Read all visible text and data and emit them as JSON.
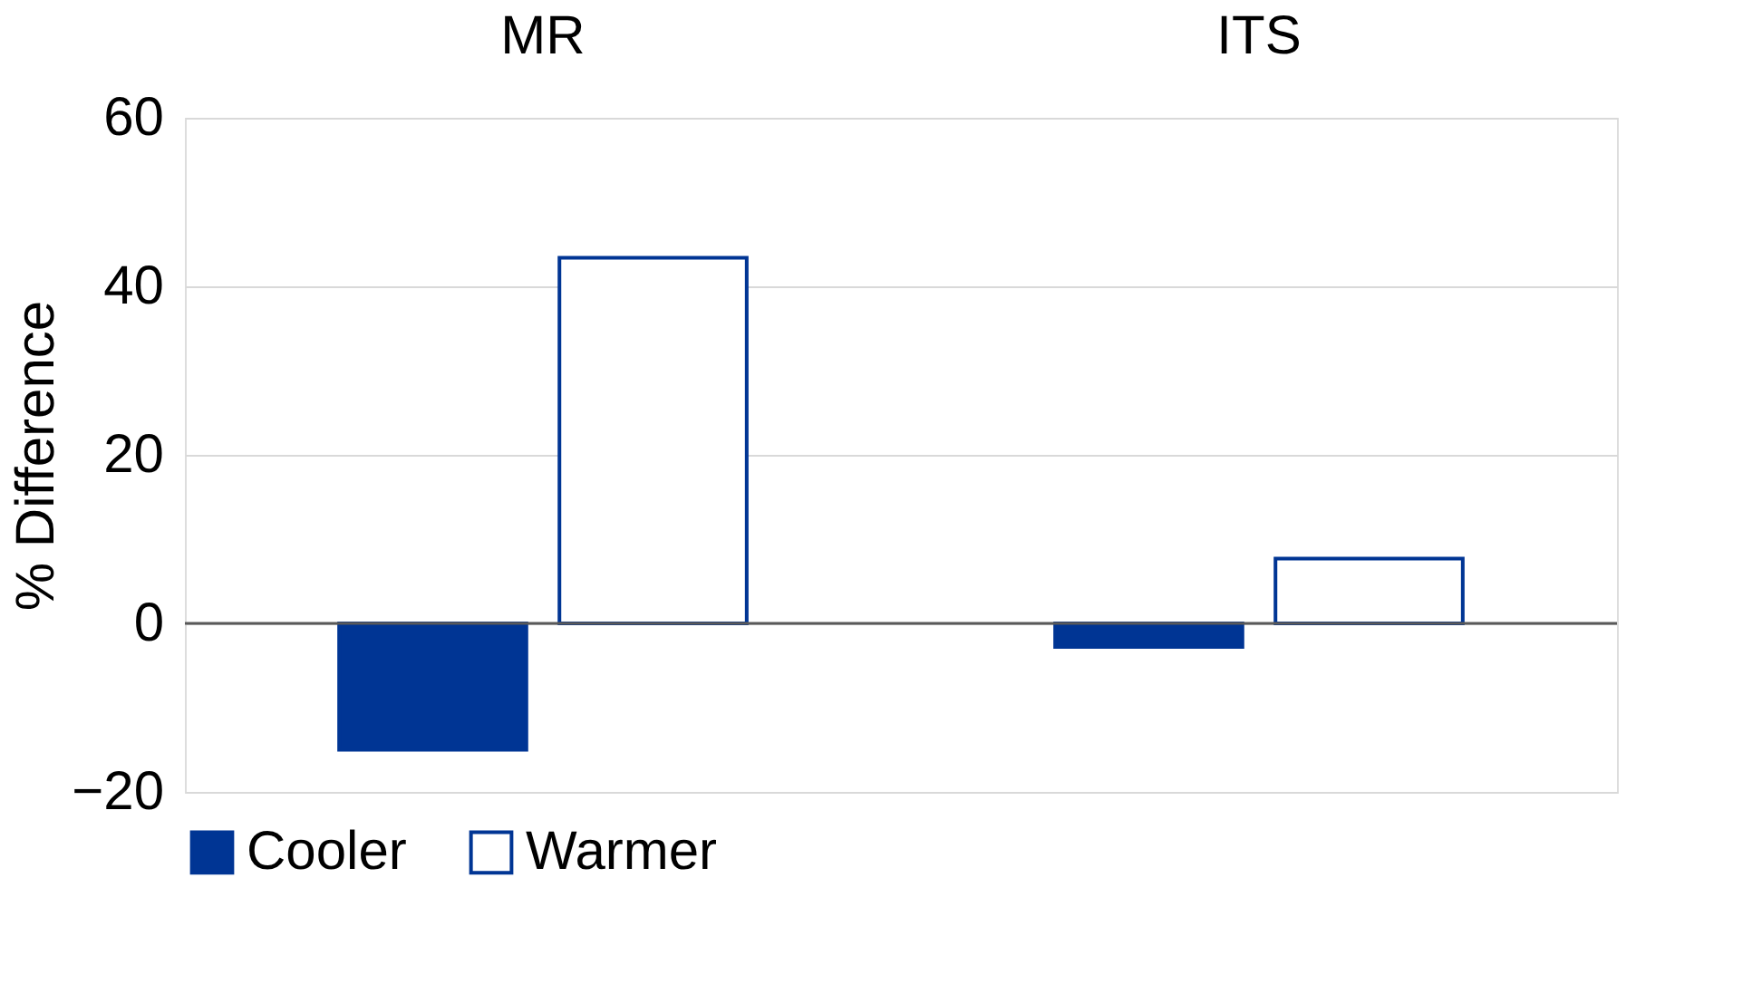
{
  "chart_data": {
    "type": "bar",
    "ylabel": "% Difference",
    "categories": [
      "MR",
      "ITS"
    ],
    "series": [
      {
        "name": "Cooler",
        "color": "#003594",
        "values": [
          -15.0,
          -2.8
        ]
      },
      {
        "name": "Warmer",
        "color": "#003594",
        "values": [
          43.4,
          7.7
        ]
      }
    ],
    "ylim": [
      -20,
      60
    ],
    "yticks": [
      -20,
      0,
      20,
      40,
      60
    ],
    "grid": "y",
    "legend": "bottom"
  }
}
